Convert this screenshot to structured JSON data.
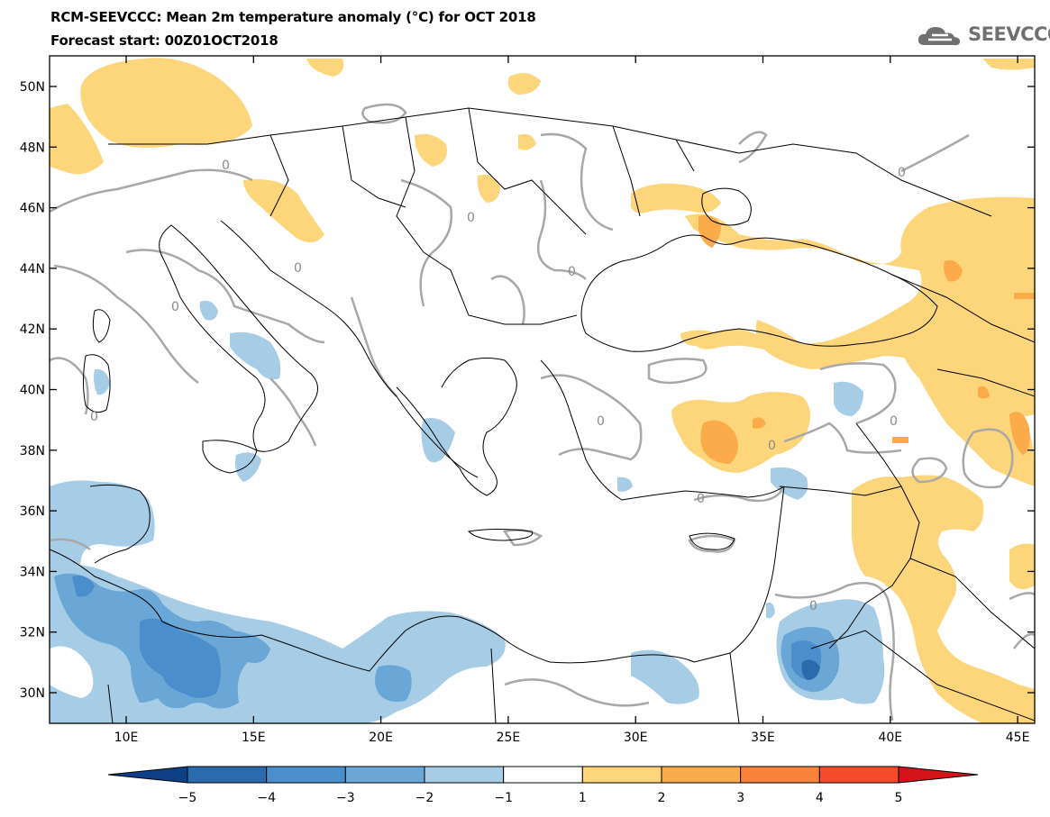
{
  "header": {
    "title": "RCM-SEEVCCC: Mean 2m temperature anomaly (°C) for OCT 2018",
    "subtitle": "Forecast start: 00Z01OCT2018",
    "logo_text": "SEEVCCC"
  },
  "map": {
    "lat_labels": [
      "50N",
      "48N",
      "46N",
      "44N",
      "42N",
      "40N",
      "38N",
      "36N",
      "34N",
      "32N",
      "30N"
    ],
    "lon_labels": [
      "10E",
      "15E",
      "20E",
      "25E",
      "30E",
      "35E",
      "40E",
      "45E"
    ],
    "contour_label": "0"
  },
  "colorbar": {
    "labels": [
      "-5",
      "-4",
      "-3",
      "-2",
      "-1",
      "1",
      "2",
      "3",
      "4",
      "5"
    ],
    "colors": [
      "#0e3f86",
      "#2b6bad",
      "#4a8fcb",
      "#6aa7d6",
      "#a7cde6",
      "#ffffff",
      "#fdd57a",
      "#fbab4a",
      "#f9833a",
      "#f44b2a",
      "#d4141a"
    ]
  },
  "colors": {
    "warm1": "#fdd57a",
    "warm2": "#fbab4a",
    "warm3": "#f9833a",
    "cold1": "#a7cde6",
    "cold2": "#6aa7d6",
    "cold3": "#4a8fcb",
    "cold4": "#2b6bad",
    "contour": "#a8a8a8"
  }
}
